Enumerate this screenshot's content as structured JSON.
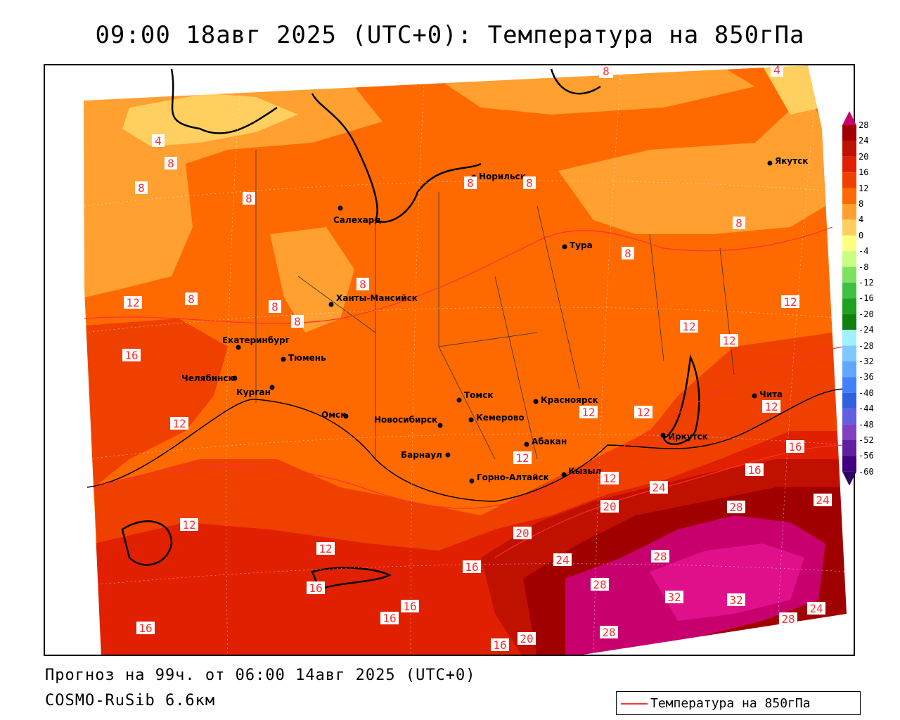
{
  "title": "09:00 18авг 2025 (UTC+0): Температура на 850гПа",
  "footer": {
    "forecast": "Прогноз на 99ч. от 06:00 14авг 2025 (UTC+0)",
    "model": "COSMO-RuSib 6.6км"
  },
  "legend": {
    "label": "Температура на 850гПа",
    "line_color": "#ff3030"
  },
  "colorbar": {
    "ticks": [
      "28",
      "24",
      "20",
      "16",
      "12",
      "8",
      "4",
      "0",
      "-4",
      "-8",
      "-12",
      "-16",
      "-20",
      "-24",
      "-28",
      "-32",
      "-36",
      "-40",
      "-44",
      "-48",
      "-52",
      "-56",
      "-60"
    ],
    "colors": [
      "#c8006e",
      "#a00000",
      "#c01000",
      "#e02000",
      "#f04000",
      "#ff6a00",
      "#ffa030",
      "#ffd060",
      "#ffff80",
      "#c8ff80",
      "#80e060",
      "#40c040",
      "#20a020",
      "#108010",
      "#a0f0ff",
      "#80c8ff",
      "#60a8ff",
      "#4080ff",
      "#3060e0",
      "#6060e0",
      "#8040c0",
      "#6020a0",
      "#400080",
      "#300060"
    ]
  },
  "cities": {
    "yakutsk": "Якутск",
    "norilsk": "Норильск",
    "salekhard": "Салехард",
    "tura": "Тура",
    "khanty": "Ханты-Мансийск",
    "ekb": "Екатеринбург",
    "tyumen": "Тюмень",
    "chel": "Челябинск",
    "kurgan": "Курган",
    "omsk": "Омск",
    "nsk": "Новосибирск",
    "tomsk": "Томск",
    "kemerovo": "Кемерово",
    "krasnoyarsk": "Красноярск",
    "abakan": "Абакан",
    "barnaul": "Барнаул",
    "gorno": "Горно-Алтайск",
    "kyzyl": "Кызыл",
    "irkutsk": "Иркутск",
    "chita": "Чита"
  },
  "contour_labels": {
    "c1": "8",
    "c2": "4",
    "c3": "4",
    "c4": "8",
    "c5": "8",
    "c6": "8",
    "c7": "8",
    "c8": "8",
    "c9": "8",
    "c10": "8",
    "c11": "8",
    "c12": "8",
    "c13": "8",
    "c14": "12",
    "c15": "16",
    "c16": "12",
    "c17": "12",
    "c18": "12",
    "c19": "12",
    "c20": "12",
    "c21": "12",
    "c22": "16",
    "c23": "12",
    "c24": "12",
    "c25": "16",
    "c26": "20",
    "c27": "24",
    "c28": "24",
    "c29": "28",
    "c30": "28",
    "c31": "24",
    "c32": "28",
    "c33": "32",
    "c34": "32",
    "c35": "28",
    "c36": "24",
    "c37": "28",
    "c38": "20",
    "c39": "16",
    "c40": "16",
    "c41": "16",
    "c42": "16",
    "c43": "16",
    "c44": "16",
    "c45": "20",
    "c46": "12",
    "c47": "12",
    "c48": "20",
    "c49": "12",
    "c50": "12",
    "c51": "8",
    "c52": "12"
  }
}
